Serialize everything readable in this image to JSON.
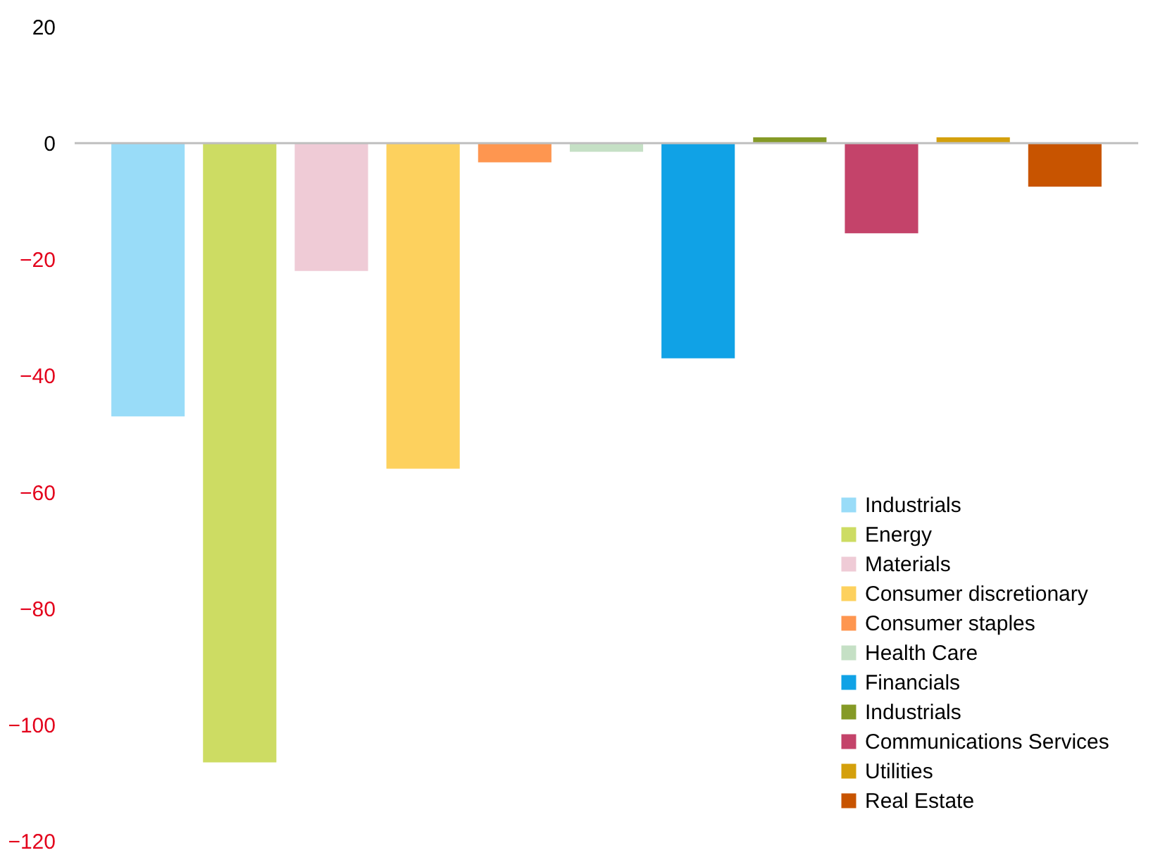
{
  "chart_data": {
    "type": "bar",
    "categories": [
      null,
      null,
      null,
      null,
      null,
      null,
      null,
      null,
      null,
      null,
      null
    ],
    "series": [
      {
        "name": "Industrials",
        "color": "#99dcf8",
        "values": [
          -47,
          null,
          null,
          null,
          null,
          null,
          null,
          null,
          null,
          null,
          null
        ]
      },
      {
        "name": "Energy",
        "color": "#cddc63",
        "values": [
          null,
          -106.5,
          null,
          null,
          null,
          null,
          null,
          null,
          null,
          null,
          null
        ]
      },
      {
        "name": "Materials",
        "color": "#efcbd6",
        "values": [
          null,
          null,
          -22,
          null,
          null,
          null,
          null,
          null,
          null,
          null,
          null
        ]
      },
      {
        "name": "Consumer discretionary",
        "color": "#fdd15e",
        "values": [
          null,
          null,
          null,
          -56,
          null,
          null,
          null,
          null,
          null,
          null,
          null
        ]
      },
      {
        "name": "Consumer staples",
        "color": "#fe9650",
        "values": [
          null,
          null,
          null,
          null,
          -3.3,
          null,
          null,
          null,
          null,
          null,
          null
        ]
      },
      {
        "name": "Health Care",
        "color": "#c5e0c5",
        "values": [
          null,
          null,
          null,
          null,
          null,
          -1.5,
          null,
          null,
          null,
          null,
          null
        ]
      },
      {
        "name": "Financials",
        "color": "#10a2e6",
        "values": [
          null,
          null,
          null,
          null,
          null,
          null,
          -37,
          null,
          null,
          null,
          null
        ]
      },
      {
        "name": "Industrials",
        "color": "#859a26",
        "values": [
          null,
          null,
          null,
          null,
          null,
          null,
          null,
          1,
          null,
          null,
          null
        ]
      },
      {
        "name": "Communications Services",
        "color": "#c4436a",
        "values": [
          null,
          null,
          null,
          null,
          null,
          null,
          null,
          null,
          -15.5,
          null,
          null
        ]
      },
      {
        "name": "Utilities",
        "color": "#d4a00c",
        "values": [
          null,
          null,
          null,
          null,
          null,
          null,
          null,
          null,
          null,
          1,
          null
        ]
      },
      {
        "name": "Real Estate",
        "color": "#c85400",
        "values": [
          null,
          null,
          null,
          null,
          null,
          null,
          null,
          null,
          null,
          null,
          -7.5
        ]
      }
    ],
    "ylim": [
      -120,
      20
    ],
    "yticks": [
      -120,
      -100,
      -80,
      -60,
      -40,
      -20,
      0,
      20
    ],
    "ref_lines": [
      {
        "axis": "y",
        "value": 0,
        "color": "#bfbfbf"
      }
    ],
    "grid": false,
    "legend": "bottom right"
  }
}
